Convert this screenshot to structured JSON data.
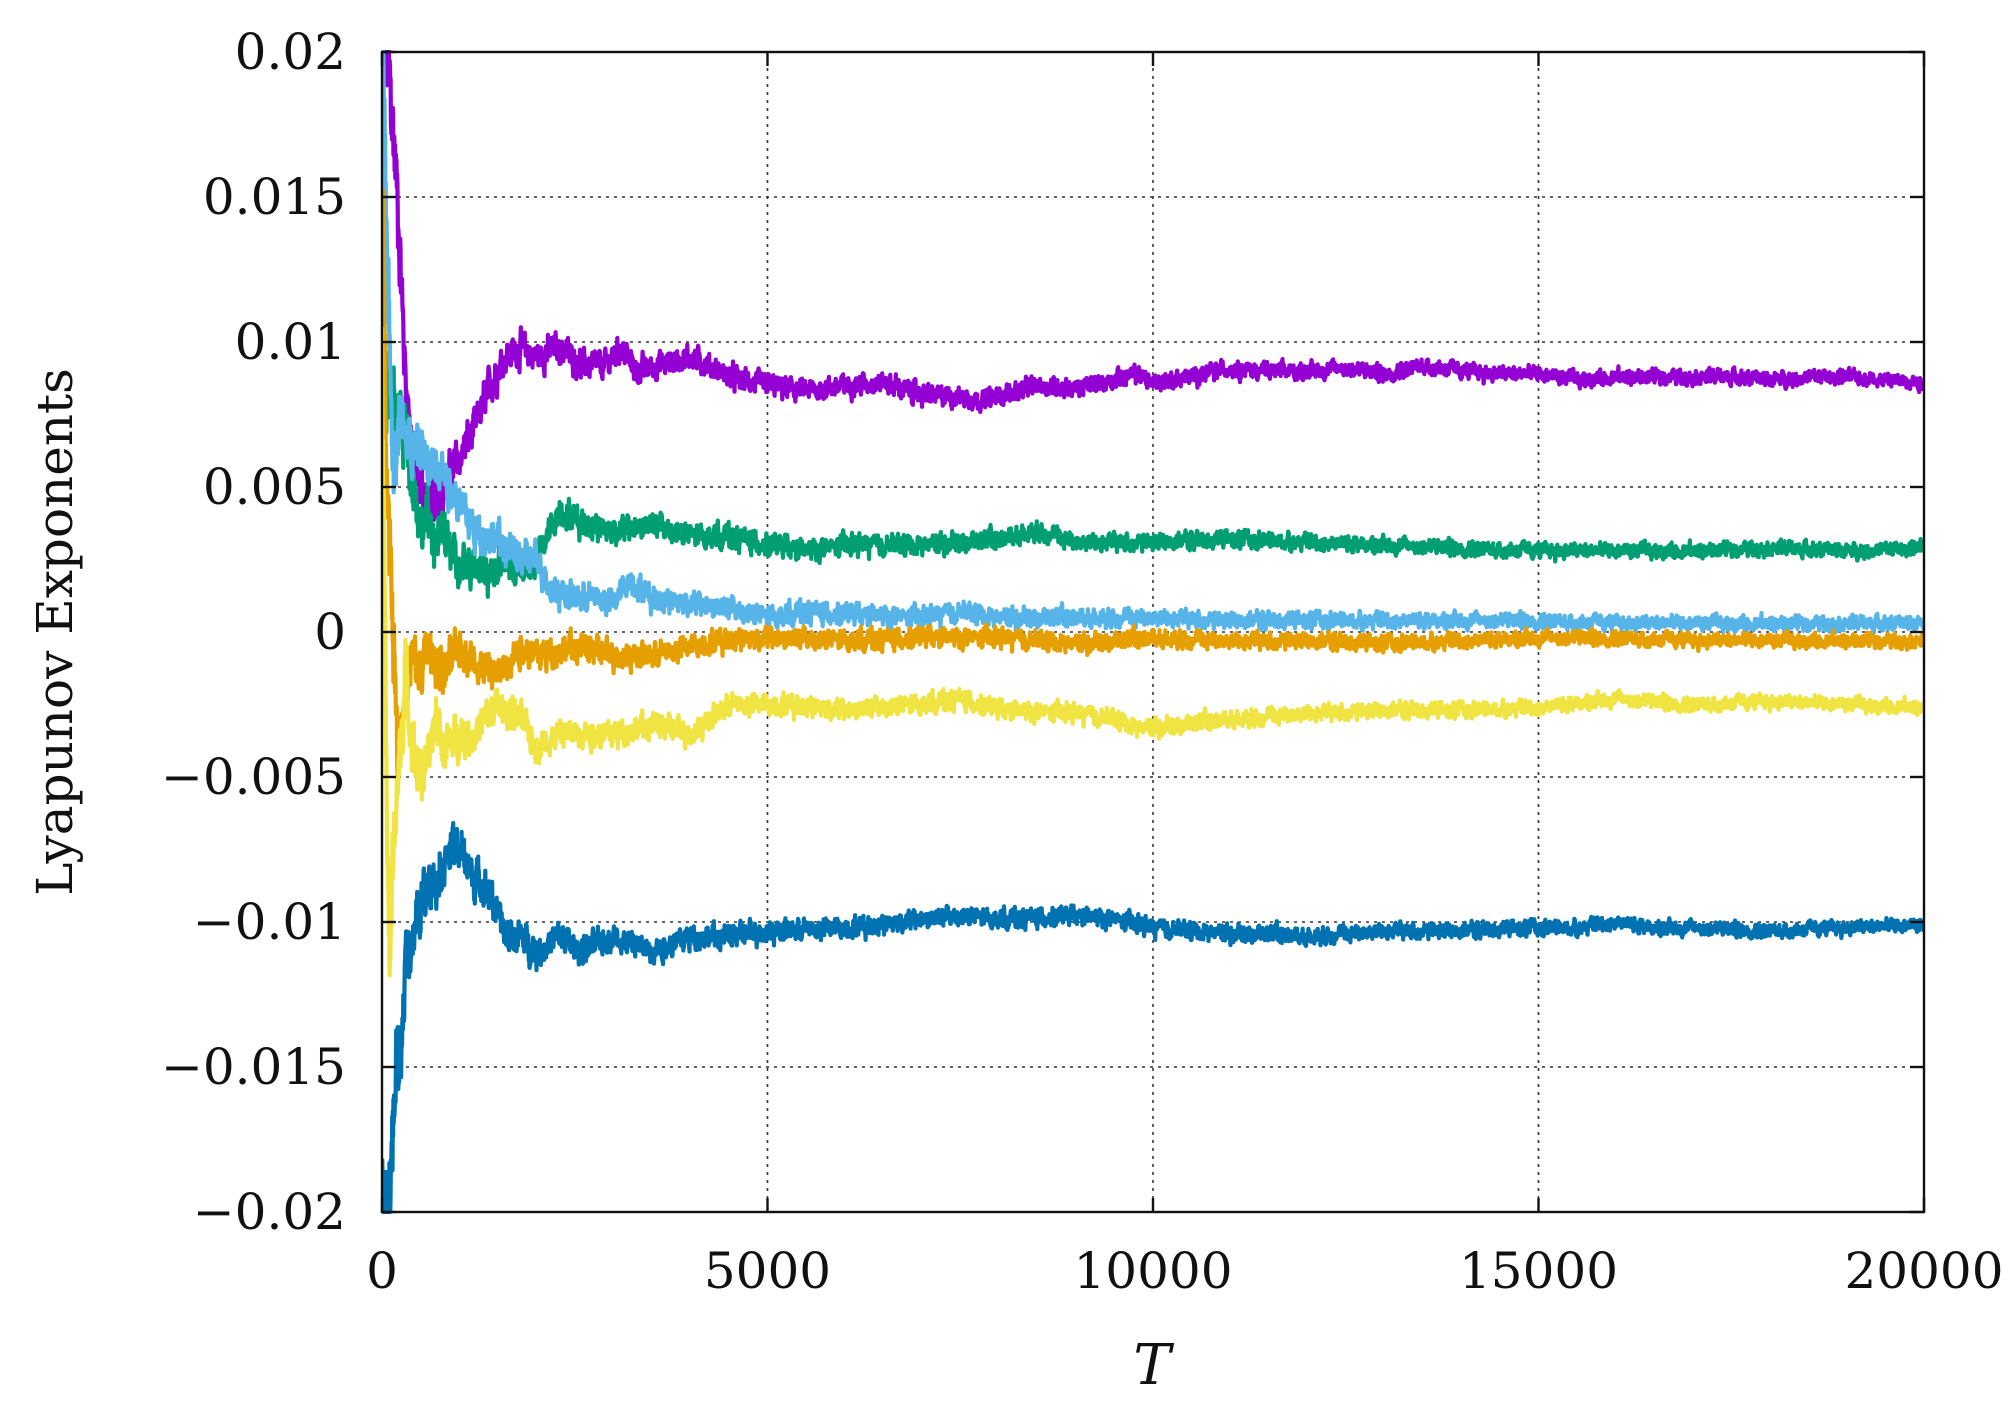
{
  "chart_data": {
    "type": "line",
    "xlabel": "T",
    "ylabel": "Lyapunov Exponents",
    "xlim": [
      0,
      20000
    ],
    "ylim": [
      -0.02,
      0.02
    ],
    "xticks": [
      0,
      5000,
      10000,
      15000,
      20000
    ],
    "xtick_labels": [
      "0",
      "5000",
      "10000",
      "15000",
      "20000"
    ],
    "yticks": [
      0.02,
      0.015,
      0.01,
      0.005,
      0,
      -0.005,
      -0.01,
      -0.015,
      -0.02
    ],
    "ytick_labels": [
      "0.02",
      "0.015",
      "0.01",
      "0.005",
      "0",
      "−0.005",
      "−0.01",
      "−0.015",
      "−0.02"
    ],
    "grid": true,
    "legend": "none",
    "series": [
      {
        "color": "#9400d3",
        "x": [
          0,
          100,
          150,
          200,
          250,
          300,
          400,
          500,
          600,
          700,
          800,
          900,
          1000,
          1100,
          1200,
          1400,
          1600,
          1800,
          2000,
          2300,
          2600,
          2900,
          3100,
          3300,
          3600,
          4000,
          4500,
          5000,
          5500,
          6000,
          6500,
          7000,
          7500,
          7800,
          8500,
          9000,
          9500,
          9800,
          10000,
          10500,
          11000,
          11500,
          12000,
          12500,
          13000,
          13500,
          14000,
          14500,
          15000,
          15500,
          16000,
          16500,
          17000,
          17500,
          18000,
          18500,
          19000,
          19500,
          20000
        ],
        "y": [
          0.02,
          0.019,
          0.017,
          0.015,
          0.012,
          0.009,
          0.006,
          0.005,
          0.0045,
          0.0045,
          0.005,
          0.0055,
          0.006,
          0.0065,
          0.007,
          0.0085,
          0.0095,
          0.0098,
          0.0095,
          0.0098,
          0.0092,
          0.0092,
          0.0098,
          0.009,
          0.0092,
          0.0095,
          0.0088,
          0.0085,
          0.0083,
          0.0085,
          0.0086,
          0.0082,
          0.0081,
          0.008,
          0.0085,
          0.0084,
          0.0087,
          0.0089,
          0.0086,
          0.0088,
          0.0091,
          0.009,
          0.009,
          0.0091,
          0.0089,
          0.0092,
          0.009,
          0.0089,
          0.0089,
          0.0087,
          0.0088,
          0.0088,
          0.0088,
          0.0088,
          0.0087,
          0.0088,
          0.0088,
          0.0087,
          0.0086
        ]
      },
      {
        "color": "#009e73",
        "x": [
          0,
          100,
          200,
          300,
          400,
          500,
          600,
          700,
          800,
          1000,
          1200,
          1400,
          1600,
          1800,
          2000,
          2300,
          2600,
          3000,
          3500,
          4000,
          4500,
          5000,
          5500,
          6000,
          7000,
          8000,
          8500,
          9000,
          9500,
          10000,
          11000,
          12000,
          13000,
          14000,
          15000,
          16000,
          17000,
          18000,
          19000,
          20000
        ],
        "y": [
          0.01,
          0.008,
          0.0075,
          0.007,
          0.0055,
          0.0035,
          0.004,
          0.003,
          0.0035,
          0.002,
          0.0025,
          0.002,
          0.0025,
          0.002,
          0.0025,
          0.0042,
          0.0038,
          0.0035,
          0.0037,
          0.0033,
          0.0033,
          0.003,
          0.0028,
          0.003,
          0.003,
          0.0032,
          0.0035,
          0.0031,
          0.0031,
          0.0031,
          0.0032,
          0.0031,
          0.003,
          0.0029,
          0.0028,
          0.0028,
          0.0028,
          0.0029,
          0.0028,
          0.0029
        ]
      },
      {
        "color": "#56b4e9",
        "x": [
          0,
          50,
          100,
          150,
          200,
          300,
          400,
          500,
          600,
          700,
          800,
          900,
          1000,
          1200,
          1500,
          1800,
          2000,
          2200,
          2500,
          2800,
          3000,
          3200,
          3500,
          4000,
          4500,
          5000,
          5500,
          6000,
          7000,
          7500,
          8000,
          9000,
          10000,
          11000,
          12000,
          13000,
          14000,
          15000,
          16000,
          17000,
          18000,
          19000,
          20000
        ],
        "y": [
          0.02,
          0.015,
          0.01,
          0.006,
          0.007,
          0.0075,
          0.006,
          0.0065,
          0.0055,
          0.006,
          0.0055,
          0.005,
          0.0045,
          0.0035,
          0.0032,
          0.0025,
          0.0025,
          0.0015,
          0.0012,
          0.0012,
          0.001,
          0.0018,
          0.0012,
          0.001,
          0.0008,
          0.0005,
          0.0007,
          0.0006,
          0.0005,
          0.0007,
          0.0005,
          0.0005,
          0.0005,
          0.0004,
          0.0004,
          0.0004,
          0.0004,
          0.0004,
          0.0003,
          0.0003,
          0.0003,
          0.0003,
          0.0003
        ]
      },
      {
        "color": "#e69f00",
        "x": [
          0,
          50,
          100,
          150,
          200,
          300,
          400,
          500,
          600,
          800,
          1000,
          1200,
          1500,
          1800,
          2000,
          2500,
          3000,
          3500,
          4000,
          4500,
          5000,
          6000,
          7000,
          8000,
          9000,
          10000,
          11000,
          12000,
          13000,
          14000,
          15000,
          16000,
          17000,
          18000,
          19000,
          20000
        ],
        "y": [
          0.014,
          0.008,
          0.003,
          0.0,
          -0.004,
          -0.002,
          -0.001,
          -0.0015,
          -0.0005,
          -0.0015,
          -0.0005,
          -0.001,
          -0.0015,
          -0.0005,
          -0.0008,
          -0.0005,
          -0.0008,
          -0.0008,
          -0.0005,
          -0.0002,
          -0.0002,
          -0.0003,
          -0.0002,
          -0.0002,
          -0.0004,
          -0.0002,
          -0.0003,
          -0.0003,
          -0.0004,
          -0.0003,
          -0.0002,
          -0.0002,
          -0.0003,
          -0.0003,
          -0.0003,
          -0.0003
        ]
      },
      {
        "color": "#f0e442",
        "x": [
          0,
          50,
          100,
          150,
          200,
          300,
          400,
          500,
          600,
          700,
          800,
          1000,
          1200,
          1500,
          1800,
          2000,
          2300,
          2600,
          3000,
          3500,
          4000,
          4500,
          5000,
          5500,
          6000,
          7000,
          7500,
          8000,
          9000,
          9500,
          9800,
          10000,
          11000,
          12000,
          13000,
          14000,
          15000,
          16000,
          17000,
          18000,
          19000,
          20000
        ],
        "y": [
          0.01,
          -0.003,
          -0.012,
          -0.007,
          -0.0055,
          -0.0015,
          -0.004,
          -0.005,
          -0.0045,
          -0.003,
          -0.004,
          -0.0035,
          -0.0035,
          -0.0025,
          -0.003,
          -0.004,
          -0.0035,
          -0.0035,
          -0.0035,
          -0.0032,
          -0.0035,
          -0.0025,
          -0.0025,
          -0.0025,
          -0.0027,
          -0.0025,
          -0.0023,
          -0.0027,
          -0.0028,
          -0.003,
          -0.0033,
          -0.0033,
          -0.003,
          -0.0028,
          -0.0027,
          -0.0027,
          -0.0026,
          -0.0023,
          -0.0025,
          -0.0024,
          -0.0025,
          -0.0026
        ]
      },
      {
        "color": "#0072b2",
        "x": [
          0,
          50,
          100,
          150,
          200,
          250,
          300,
          400,
          500,
          600,
          700,
          800,
          900,
          1000,
          1200,
          1400,
          1600,
          1800,
          2000,
          2300,
          2600,
          3000,
          3500,
          4000,
          4500,
          5000,
          6000,
          7000,
          7500,
          8000,
          9000,
          9500,
          10000,
          10500,
          11000,
          11500,
          12000,
          13000,
          14000,
          15000,
          15500,
          16000,
          16500,
          17000,
          18000,
          19000,
          20000
        ],
        "y": [
          -0.02,
          -0.02,
          -0.019,
          -0.017,
          -0.0145,
          -0.0155,
          -0.011,
          -0.0105,
          -0.0095,
          -0.0085,
          -0.0085,
          -0.008,
          -0.0075,
          -0.0075,
          -0.0085,
          -0.009,
          -0.0105,
          -0.0105,
          -0.011,
          -0.0105,
          -0.011,
          -0.0105,
          -0.011,
          -0.0105,
          -0.0105,
          -0.0103,
          -0.0102,
          -0.0099,
          -0.0098,
          -0.0099,
          -0.0098,
          -0.0099,
          -0.0102,
          -0.0103,
          -0.0104,
          -0.0104,
          -0.0105,
          -0.0103,
          -0.0103,
          -0.0102,
          -0.0102,
          -0.01,
          -0.0102,
          -0.0102,
          -0.0103,
          -0.0102,
          -0.0101
        ]
      }
    ]
  }
}
